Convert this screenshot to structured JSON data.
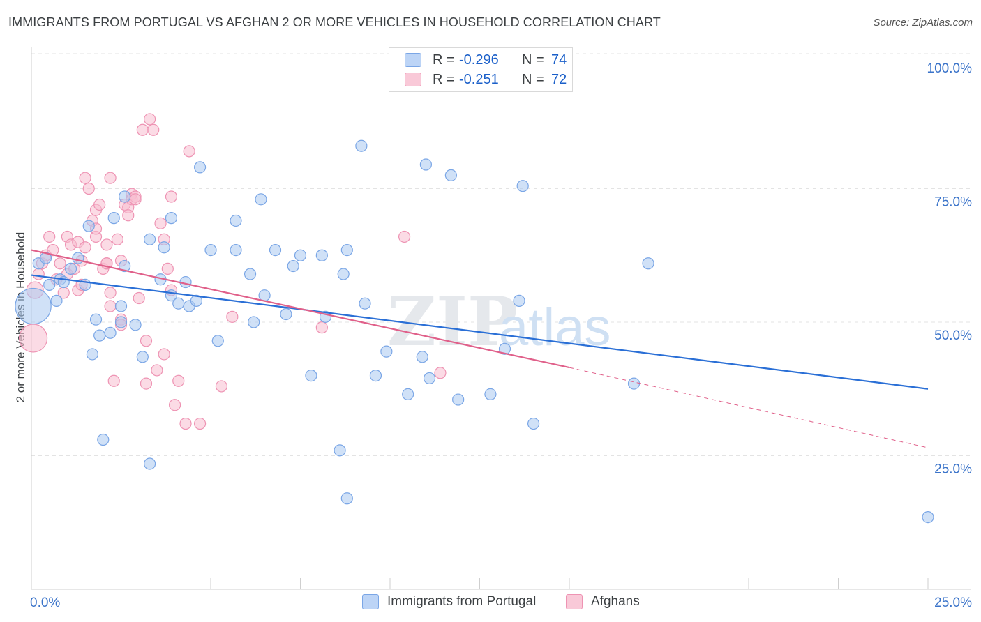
{
  "header": {
    "title": "IMMIGRANTS FROM PORTUGAL VS AFGHAN 2 OR MORE VEHICLES IN HOUSEHOLD CORRELATION CHART",
    "source": "Source: ZipAtlas.com"
  },
  "legend_top": {
    "rows": [
      {
        "r_label": "R =",
        "r_value": "-0.296",
        "n_label": "N =",
        "n_value": "74",
        "fill": "#bcd4f6",
        "stroke": "#7aa6e6"
      },
      {
        "r_label": "R =",
        "r_value": "-0.251",
        "n_label": "N =",
        "n_value": "72",
        "fill": "#f9c9d8",
        "stroke": "#ee93b3"
      }
    ]
  },
  "legend_bottom": {
    "items": [
      {
        "label": "Immigrants from Portugal",
        "fill": "#bcd4f6",
        "stroke": "#7aa6e6"
      },
      {
        "label": "Afghans",
        "fill": "#f9c9d8",
        "stroke": "#ee93b3"
      }
    ]
  },
  "watermark": {
    "zip": "ZIP",
    "atlas": "atlas"
  },
  "colors": {
    "blue_fill": "#a9c8f0",
    "blue_stroke": "#7aa6e6",
    "blue_line": "#2a6fd6",
    "pink_fill": "#f7bdd0",
    "pink_stroke": "#ee93b3",
    "pink_line": "#e0608a",
    "tick_text": "#3a73c9",
    "grid": "#e3e3e3"
  },
  "chart_data": {
    "type": "scatter",
    "title": "IMMIGRANTS FROM PORTUGAL VS AFGHAN 2 OR MORE VEHICLES IN HOUSEHOLD CORRELATION CHART",
    "xlabel": "",
    "ylabel": "2 or more Vehicles in Household",
    "xlim": [
      0,
      25
    ],
    "ylim": [
      0,
      100
    ],
    "x_tick_labels": [
      "0.0%",
      "25.0%"
    ],
    "y_tick_labels": [
      "100.0%",
      "75.0%",
      "50.0%",
      "25.0%"
    ],
    "y_ticks": [
      100,
      75,
      50,
      25
    ],
    "grid": true,
    "legend_position": "top-center",
    "series": [
      {
        "name": "Immigrants from Portugal",
        "r": -0.296,
        "n": 74,
        "trend": {
          "x0": 0,
          "y0": 58.8,
          "x1": 25,
          "y1": 37.5
        },
        "points": [
          [
            0.05,
            53,
            3.2
          ],
          [
            0.2,
            61,
            1
          ],
          [
            0.4,
            62,
            1
          ],
          [
            0.5,
            57,
            1
          ],
          [
            0.7,
            54,
            1
          ],
          [
            0.8,
            58,
            1
          ],
          [
            0.9,
            57.5,
            1
          ],
          [
            1.1,
            60,
            1
          ],
          [
            1.3,
            62,
            1
          ],
          [
            1.5,
            57,
            1
          ],
          [
            1.6,
            68,
            1
          ],
          [
            1.8,
            50.5,
            1
          ],
          [
            1.7,
            44,
            1
          ],
          [
            1.9,
            47.5,
            1
          ],
          [
            2.0,
            28,
            1
          ],
          [
            2.2,
            48,
            1
          ],
          [
            2.3,
            69.5,
            1
          ],
          [
            2.5,
            50,
            1
          ],
          [
            2.5,
            53,
            1
          ],
          [
            2.6,
            60.5,
            1
          ],
          [
            2.6,
            73.5,
            1
          ],
          [
            2.9,
            49.5,
            1
          ],
          [
            3.1,
            43.5,
            1
          ],
          [
            3.3,
            23.5,
            1
          ],
          [
            3.3,
            65.5,
            1
          ],
          [
            3.6,
            58,
            1
          ],
          [
            3.7,
            64,
            1
          ],
          [
            3.9,
            55,
            1
          ],
          [
            3.9,
            69.5,
            1
          ],
          [
            4.1,
            53.5,
            1
          ],
          [
            4.3,
            57.5,
            1
          ],
          [
            4.4,
            53,
            1
          ],
          [
            4.6,
            54,
            1
          ],
          [
            4.7,
            79,
            1
          ],
          [
            5.0,
            63.5,
            1
          ],
          [
            5.2,
            46.5,
            1
          ],
          [
            5.7,
            69,
            1
          ],
          [
            5.7,
            63.5,
            1
          ],
          [
            6.1,
            59,
            1
          ],
          [
            6.2,
            50,
            1
          ],
          [
            6.4,
            73,
            1
          ],
          [
            6.5,
            55,
            1
          ],
          [
            6.8,
            63.5,
            1
          ],
          [
            7.1,
            51.5,
            1
          ],
          [
            7.3,
            60.5,
            1
          ],
          [
            7.5,
            62.5,
            1
          ],
          [
            7.8,
            40,
            1
          ],
          [
            8.1,
            62.5,
            1
          ],
          [
            8.2,
            51,
            1
          ],
          [
            8.6,
            26,
            1
          ],
          [
            8.7,
            59,
            1
          ],
          [
            8.8,
            63.5,
            1
          ],
          [
            8.8,
            17,
            1
          ],
          [
            9.2,
            83,
            1
          ],
          [
            9.3,
            53.5,
            1
          ],
          [
            9.6,
            40,
            1
          ],
          [
            9.9,
            44.5,
            1
          ],
          [
            10.5,
            36.5,
            1
          ],
          [
            10.9,
            43.5,
            1
          ],
          [
            11.0,
            79.5,
            1
          ],
          [
            11.1,
            39.5,
            1
          ],
          [
            11.7,
            77.5,
            1
          ],
          [
            11.9,
            35.5,
            1
          ],
          [
            12.8,
            36.5,
            1
          ],
          [
            13.2,
            45,
            1
          ],
          [
            13.6,
            54,
            1
          ],
          [
            13.7,
            75.5,
            1
          ],
          [
            14.0,
            31,
            1
          ],
          [
            16.8,
            38.5,
            1
          ],
          [
            17.2,
            61,
            1
          ],
          [
            25.0,
            13.5,
            1
          ]
        ]
      },
      {
        "name": "Afghans",
        "r": -0.251,
        "n": 72,
        "trend": {
          "x0": 0,
          "y0": 63.5,
          "x1": 15.0,
          "y1": 41.5,
          "dash_to_x": 25,
          "dash_to_y": 26.5
        },
        "points": [
          [
            0.05,
            47,
            2.5
          ],
          [
            0.1,
            56,
            1.5
          ],
          [
            0.2,
            59,
            1
          ],
          [
            0.3,
            61,
            1
          ],
          [
            0.4,
            62.5,
            1
          ],
          [
            0.5,
            66,
            1
          ],
          [
            0.6,
            63.5,
            1
          ],
          [
            0.7,
            58,
            1
          ],
          [
            0.8,
            61,
            1
          ],
          [
            0.9,
            55.5,
            1
          ],
          [
            1.0,
            59,
            1
          ],
          [
            1.0,
            66,
            1
          ],
          [
            1.1,
            64.5,
            1
          ],
          [
            1.2,
            60,
            1
          ],
          [
            1.3,
            56,
            1
          ],
          [
            1.3,
            65,
            1
          ],
          [
            1.4,
            61.5,
            1
          ],
          [
            1.4,
            57,
            1
          ],
          [
            1.5,
            64,
            1
          ],
          [
            1.5,
            77,
            1
          ],
          [
            1.6,
            75,
            1
          ],
          [
            1.7,
            69,
            1
          ],
          [
            1.8,
            71,
            1
          ],
          [
            1.8,
            66,
            1
          ],
          [
            1.8,
            67.5,
            1
          ],
          [
            1.9,
            72,
            1
          ],
          [
            2.0,
            60,
            1
          ],
          [
            2.1,
            61,
            1
          ],
          [
            2.1,
            64.5,
            1
          ],
          [
            2.1,
            61,
            1
          ],
          [
            2.2,
            77,
            1
          ],
          [
            2.2,
            55.5,
            1
          ],
          [
            2.2,
            53,
            1
          ],
          [
            2.3,
            39,
            1
          ],
          [
            2.4,
            65.5,
            1
          ],
          [
            2.5,
            50.5,
            1
          ],
          [
            2.5,
            49.5,
            1
          ],
          [
            2.5,
            61.5,
            1
          ],
          [
            2.6,
            72,
            1
          ],
          [
            2.7,
            71.5,
            1
          ],
          [
            2.7,
            70,
            1
          ],
          [
            2.8,
            74,
            1
          ],
          [
            2.8,
            73,
            1
          ],
          [
            2.9,
            73.5,
            1
          ],
          [
            2.9,
            73,
            1
          ],
          [
            3.0,
            54.5,
            1
          ],
          [
            3.1,
            86,
            1
          ],
          [
            3.2,
            46.5,
            1
          ],
          [
            3.2,
            38.5,
            1
          ],
          [
            3.3,
            88,
            1
          ],
          [
            3.4,
            86,
            1
          ],
          [
            3.5,
            41,
            1
          ],
          [
            3.6,
            68.5,
            1
          ],
          [
            3.7,
            65.5,
            1
          ],
          [
            3.7,
            44,
            1
          ],
          [
            3.8,
            60,
            1
          ],
          [
            3.9,
            56,
            1
          ],
          [
            3.9,
            73.5,
            1
          ],
          [
            4.0,
            34.5,
            1
          ],
          [
            4.1,
            39,
            1
          ],
          [
            4.3,
            31,
            1
          ],
          [
            4.4,
            82,
            1
          ],
          [
            4.7,
            31,
            1
          ],
          [
            5.3,
            38,
            1
          ],
          [
            5.6,
            51,
            1
          ],
          [
            8.1,
            49,
            1
          ],
          [
            10.4,
            66,
            1
          ],
          [
            11.4,
            40.5,
            1
          ]
        ]
      }
    ]
  }
}
